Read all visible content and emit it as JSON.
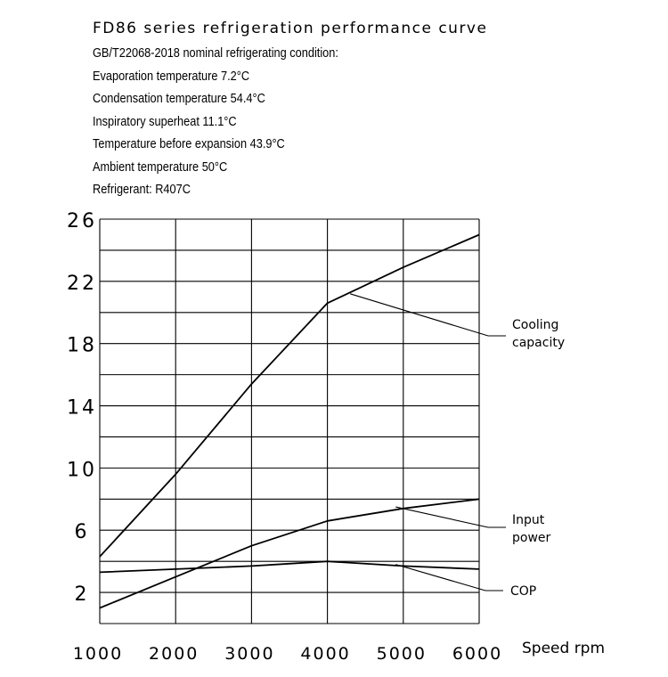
{
  "header": {
    "title": "FD86 series refrigeration performance curve",
    "conditions": [
      "GB/T22068-2018 nominal refrigerating condition:",
      "Evaporation temperature 7.2°C",
      "Condensation  temperature 54.4°C",
      "Inspiratory superheat 11.1°C",
      "Temperature before expansion 43.9°C",
      "Ambient  temperature 50°C",
      "Refrigerant: R407C"
    ]
  },
  "chart_data": {
    "type": "line",
    "title": "FD86 series refrigeration performance curve",
    "xlabel": "Speed rpm",
    "ylabel": "",
    "xlim": [
      1000,
      6000
    ],
    "ylim": [
      0,
      26
    ],
    "xticks": [
      1000,
      2000,
      3000,
      4000,
      5000,
      6000
    ],
    "yticks": [
      2,
      6,
      10,
      14,
      18,
      22,
      26
    ],
    "ytick_labels": [
      "2",
      "6",
      "10",
      "14",
      "18",
      "22",
      "26"
    ],
    "xtick_labels": [
      "1000",
      "2000",
      "3000",
      "4000",
      "5000",
      "6000"
    ],
    "grid": true,
    "series": [
      {
        "name": "Cooling capacity",
        "x": [
          1000,
          2000,
          3000,
          4000,
          5000,
          6000
        ],
        "y": [
          4.3,
          9.6,
          15.4,
          20.6,
          22.9,
          25.0
        ]
      },
      {
        "name": "Input power",
        "x": [
          1000,
          2000,
          3000,
          4000,
          5000,
          6000
        ],
        "y": [
          1.0,
          3.0,
          5.0,
          6.6,
          7.4,
          8.0
        ]
      },
      {
        "name": "COP",
        "x": [
          1000,
          2000,
          3000,
          4000,
          5000,
          6000
        ],
        "y": [
          3.3,
          3.5,
          3.7,
          4.0,
          3.7,
          3.5
        ]
      }
    ],
    "annotations": [
      {
        "text": [
          "Cooling",
          "capacity"
        ],
        "series": "Cooling capacity",
        "point": [
          4300,
          21.2
        ]
      },
      {
        "text": [
          "Input",
          "power"
        ],
        "series": "Input power",
        "point": [
          4900,
          7.5
        ]
      },
      {
        "text": [
          "COP"
        ],
        "series": "COP",
        "point": [
          4900,
          3.8
        ]
      }
    ]
  }
}
